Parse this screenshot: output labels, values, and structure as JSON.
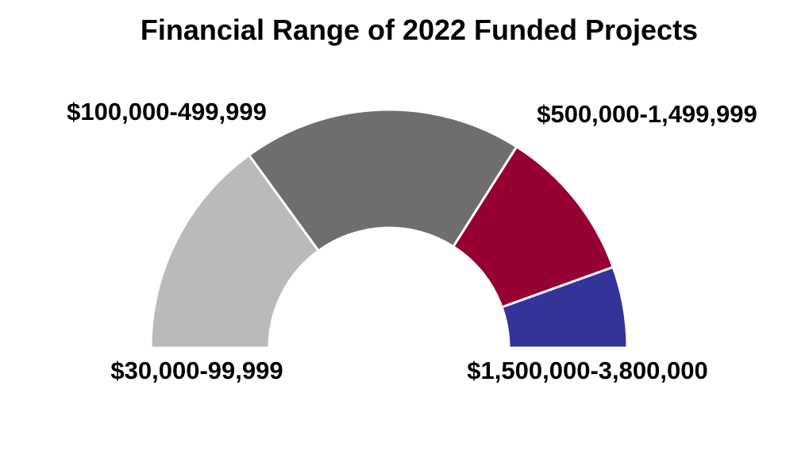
{
  "chart_data": {
    "type": "pie",
    "variant": "half-donut",
    "title": "Financial Range of 2022 Funded Projects",
    "categories": [
      "$30,000-99,999",
      "$100,000-499,999",
      "$500,000-1,499,999",
      "$1,500,000-3,800,000"
    ],
    "values": [
      30,
      38,
      21,
      11
    ],
    "colors": [
      "#BABABA",
      "#6E6E6E",
      "#970033",
      "#333399"
    ],
    "slice_border_color": "#FFFFFF",
    "legend": "none"
  }
}
